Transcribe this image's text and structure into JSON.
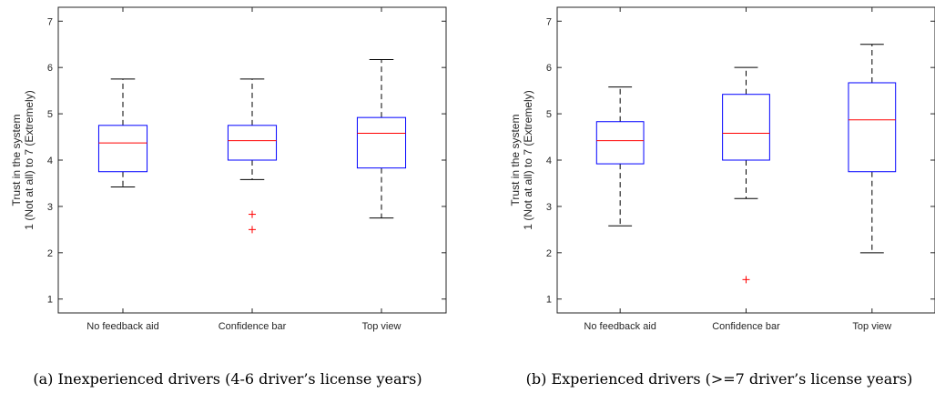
{
  "chart_data": [
    {
      "type": "box",
      "caption": "(a) Inexperienced drivers (4-6 driver’s license years)",
      "ylabel_line1": "Trust in the system",
      "ylabel_line2": "1 (Not at all)  to  7 (Extremely)",
      "ylim": [
        0.7,
        7.3
      ],
      "yticks": [
        1,
        2,
        3,
        4,
        5,
        6,
        7
      ],
      "categories": [
        "No feedback aid",
        "Confidence bar",
        "Top view"
      ],
      "boxes": [
        {
          "whisker_low": 3.42,
          "q1": 3.75,
          "median": 4.37,
          "q3": 4.75,
          "whisker_high": 5.75,
          "outliers": []
        },
        {
          "whisker_low": 3.58,
          "q1": 4.0,
          "median": 4.42,
          "q3": 4.75,
          "whisker_high": 5.75,
          "outliers": [
            2.83,
            2.5
          ]
        },
        {
          "whisker_low": 2.75,
          "q1": 3.83,
          "median": 4.58,
          "q3": 4.92,
          "whisker_high": 6.17,
          "outliers": []
        }
      ],
      "colors": {
        "box": "#0000ff",
        "median": "#ff0000",
        "whisker": "#000000",
        "outlier": "#ff0000"
      }
    },
    {
      "type": "box",
      "caption": "(b) Experienced drivers (>=7 driver’s license years)",
      "ylabel_line1": "Trust in the system",
      "ylabel_line2": "1 (Not at all)  to  7 (Extremely)",
      "ylim": [
        0.7,
        7.3
      ],
      "yticks": [
        1,
        2,
        3,
        4,
        5,
        6,
        7
      ],
      "categories": [
        "No feedback aid",
        "Confidence bar",
        "Top view"
      ],
      "boxes": [
        {
          "whisker_low": 2.58,
          "q1": 3.92,
          "median": 4.42,
          "q3": 4.83,
          "whisker_high": 5.58,
          "outliers": []
        },
        {
          "whisker_low": 3.17,
          "q1": 4.0,
          "median": 4.58,
          "q3": 5.42,
          "whisker_high": 6.0,
          "outliers": [
            1.42
          ]
        },
        {
          "whisker_low": 2.0,
          "q1": 3.75,
          "median": 4.87,
          "q3": 5.67,
          "whisker_high": 6.5,
          "outliers": []
        }
      ],
      "colors": {
        "box": "#0000ff",
        "median": "#ff0000",
        "whisker": "#000000",
        "outlier": "#ff0000"
      }
    }
  ]
}
